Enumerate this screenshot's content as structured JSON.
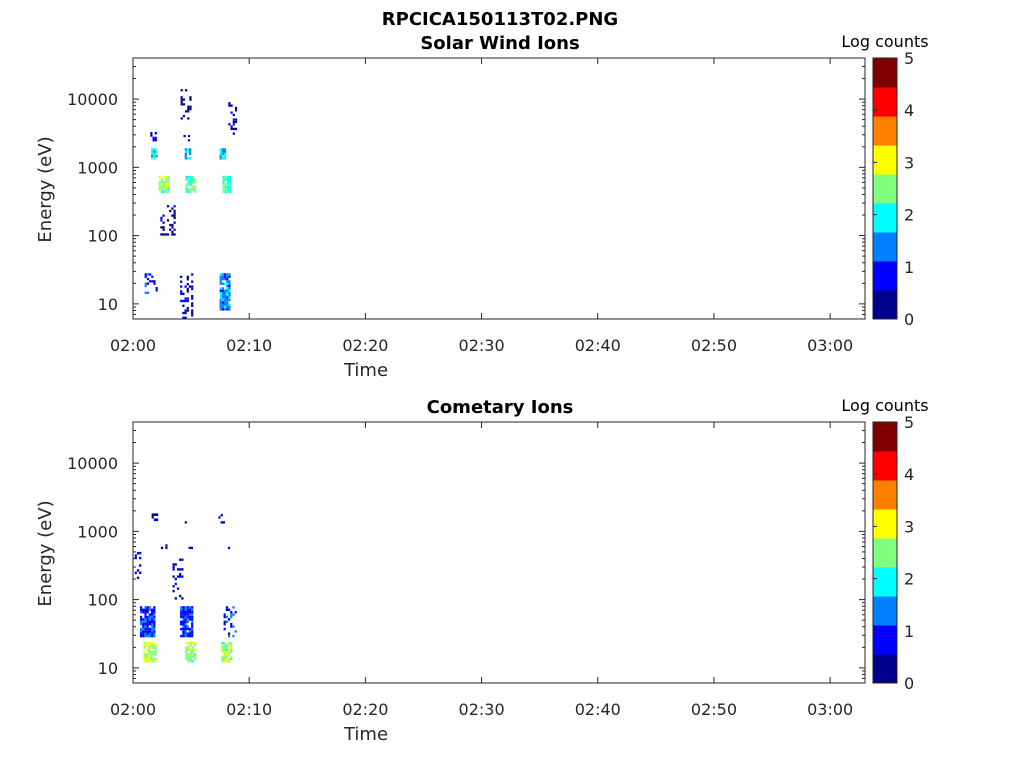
{
  "figure": {
    "title": "RPCICA150113T02.PNG"
  },
  "colormap": [
    "#00008f",
    "#0000ff",
    "#0080ff",
    "#00ffff",
    "#80ff80",
    "#ffff00",
    "#ff8000",
    "#ff0000",
    "#800000"
  ],
  "chart_data": [
    {
      "type": "heatmap",
      "title": "Solar Wind Ions",
      "xlabel": "Time",
      "ylabel": "Energy (eV)",
      "xlim": [
        "02:00",
        "03:03"
      ],
      "xticks": [
        "02:00",
        "02:10",
        "02:20",
        "02:30",
        "02:40",
        "02:50",
        "03:00"
      ],
      "yscale": "log",
      "ylim": [
        6,
        40000
      ],
      "yticks": [
        {
          "v": 10,
          "label": "10"
        },
        {
          "v": 100,
          "label": "100"
        },
        {
          "v": 1000,
          "label": "1000"
        },
        {
          "v": 10000,
          "label": "10000"
        }
      ],
      "colorbar": {
        "label": "Log counts",
        "range": [
          0,
          5
        ],
        "ticks": [
          "0",
          "1",
          "2",
          "3",
          "4",
          "5"
        ]
      },
      "clusters": [
        {
          "t": 1.8,
          "dt": 0.5,
          "e0": 1300,
          "e1": 1900,
          "level": 1.9
        },
        {
          "t": 2.6,
          "dt": 0.8,
          "e0": 420,
          "e1": 750,
          "level": 2.6
        },
        {
          "t": 1.6,
          "dt": 0.6,
          "e0": 2400,
          "e1": 3300,
          "level": 0.7
        },
        {
          "t": 1.5,
          "dt": 1.0,
          "e0": 14,
          "e1": 28,
          "level": 0.9
        },
        {
          "t": 4.7,
          "dt": 0.5,
          "e0": 1300,
          "e1": 1900,
          "level": 1.7
        },
        {
          "t": 4.9,
          "dt": 0.8,
          "e0": 420,
          "e1": 750,
          "level": 2.3
        },
        {
          "t": 4.6,
          "dt": 0.5,
          "e0": 2400,
          "e1": 3200,
          "level": 0.6
        },
        {
          "t": 4.6,
          "dt": 1.1,
          "e0": 6,
          "e1": 28,
          "level": 0.5
        },
        {
          "t": 7.7,
          "dt": 0.5,
          "e0": 1300,
          "e1": 1900,
          "level": 1.8
        },
        {
          "t": 8.0,
          "dt": 0.6,
          "e0": 420,
          "e1": 750,
          "level": 2.2
        },
        {
          "t": 7.9,
          "dt": 0.9,
          "e0": 8,
          "e1": 28,
          "level": 1.4
        },
        {
          "t": 3.0,
          "dt": 1.3,
          "e0": 100,
          "e1": 280,
          "level": 0.3
        },
        {
          "t": 4.5,
          "dt": 0.8,
          "e0": 5000,
          "e1": 14000,
          "level": 0.3
        },
        {
          "t": 8.5,
          "dt": 0.6,
          "e0": 3000,
          "e1": 9000,
          "level": 0.3
        }
      ]
    },
    {
      "type": "heatmap",
      "title": "Cometary Ions",
      "xlabel": "Time",
      "ylabel": "Energy (eV)",
      "xlim": [
        "02:00",
        "03:03"
      ],
      "xticks": [
        "02:00",
        "02:10",
        "02:20",
        "02:30",
        "02:40",
        "02:50",
        "03:00"
      ],
      "yscale": "log",
      "ylim": [
        6,
        40000
      ],
      "yticks": [
        {
          "v": 10,
          "label": "10"
        },
        {
          "v": 100,
          "label": "100"
        },
        {
          "v": 1000,
          "label": "1000"
        },
        {
          "v": 10000,
          "label": "10000"
        }
      ],
      "colorbar": {
        "label": "Log counts",
        "range": [
          0,
          5
        ],
        "ticks": [
          "0",
          "1",
          "2",
          "3",
          "4",
          "5"
        ]
      },
      "clusters": [
        {
          "t": 1.4,
          "dt": 1.0,
          "e0": 12,
          "e1": 24,
          "level": 2.7
        },
        {
          "t": 1.2,
          "dt": 1.2,
          "e0": 28,
          "e1": 80,
          "level": 1.0
        },
        {
          "t": 0.4,
          "dt": 0.5,
          "e0": 200,
          "e1": 500,
          "level": 0.6
        },
        {
          "t": 1.8,
          "dt": 0.4,
          "e0": 1300,
          "e1": 2000,
          "level": 0.6
        },
        {
          "t": 2.6,
          "dt": 0.4,
          "e0": 550,
          "e1": 700,
          "level": 0.7
        },
        {
          "t": 4.9,
          "dt": 0.8,
          "e0": 12,
          "e1": 24,
          "level": 2.5
        },
        {
          "t": 4.6,
          "dt": 1.1,
          "e0": 28,
          "e1": 80,
          "level": 1.0
        },
        {
          "t": 3.8,
          "dt": 0.8,
          "e0": 100,
          "e1": 400,
          "level": 0.5
        },
        {
          "t": 4.6,
          "dt": 0.3,
          "e0": 1300,
          "e1": 1900,
          "level": 0.5
        },
        {
          "t": 4.8,
          "dt": 0.4,
          "e0": 550,
          "e1": 700,
          "level": 0.5
        },
        {
          "t": 8.0,
          "dt": 0.8,
          "e0": 12,
          "e1": 24,
          "level": 2.6
        },
        {
          "t": 8.3,
          "dt": 1.0,
          "e0": 28,
          "e1": 80,
          "level": 0.9
        },
        {
          "t": 7.6,
          "dt": 0.5,
          "e0": 1300,
          "e1": 1800,
          "level": 0.5
        },
        {
          "t": 8.0,
          "dt": 0.4,
          "e0": 550,
          "e1": 700,
          "level": 0.5
        }
      ]
    }
  ]
}
